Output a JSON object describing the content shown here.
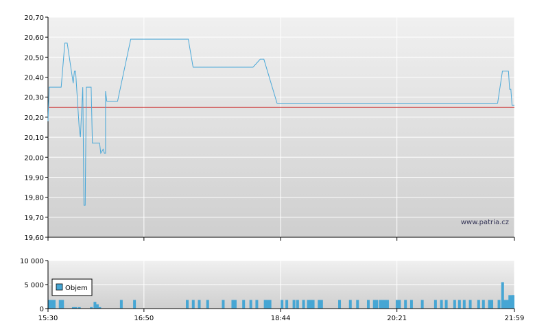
{
  "watermark": "www.patria.cz",
  "colors": {
    "price_line": "#4aa8d8",
    "reference_line": "#cc3333",
    "volume_bar": "#46a6d4",
    "grid": "#ffffff",
    "plot_top": "#f0f0f0",
    "plot_bottom": "#cfcfcf"
  },
  "chart_data": [
    {
      "type": "line",
      "name": "price",
      "ylim": [
        19.6,
        20.7
      ],
      "y_ticks": [
        "20,70",
        "20,60",
        "20,50",
        "20,40",
        "20,30",
        "20,20",
        "20,10",
        "20,00",
        "19,90",
        "19,80",
        "19,70",
        "19,60"
      ],
      "y_tick_values": [
        20.7,
        20.6,
        20.5,
        20.4,
        20.3,
        20.2,
        20.1,
        20.0,
        19.9,
        19.8,
        19.7,
        19.6
      ],
      "x_time_range": [
        "15:30",
        "21:59"
      ],
      "reference_value": 20.25,
      "points": [
        [
          "15:30",
          20.18
        ],
        [
          "15:31",
          20.35
        ],
        [
          "15:40",
          20.35
        ],
        [
          "15:41",
          20.35
        ],
        [
          "15:44",
          20.57
        ],
        [
          "15:46",
          20.57
        ],
        [
          "15:51",
          20.37
        ],
        [
          "15:52",
          20.43
        ],
        [
          "15:53",
          20.43
        ],
        [
          "15:56",
          20.15
        ],
        [
          "15:57",
          20.1
        ],
        [
          "15:59",
          20.35
        ],
        [
          "16:00",
          19.76
        ],
        [
          "16:01",
          19.76
        ],
        [
          "16:02",
          20.35
        ],
        [
          "16:06",
          20.35
        ],
        [
          "16:07",
          20.07
        ],
        [
          "16:13",
          20.07
        ],
        [
          "16:14",
          20.02
        ],
        [
          "16:16",
          20.04
        ],
        [
          "16:17",
          20.02
        ],
        [
          "16:18",
          20.02
        ],
        [
          "16:18",
          20.33
        ],
        [
          "16:19",
          20.28
        ],
        [
          "16:28",
          20.28
        ],
        [
          "16:39",
          20.59
        ],
        [
          "17:27",
          20.59
        ],
        [
          "17:31",
          20.45
        ],
        [
          "18:21",
          20.45
        ],
        [
          "18:27",
          20.49
        ],
        [
          "18:30",
          20.49
        ],
        [
          "18:41",
          20.27
        ],
        [
          "21:45",
          20.27
        ],
        [
          "21:49",
          20.43
        ],
        [
          "21:54",
          20.43
        ],
        [
          "21:55",
          20.34
        ],
        [
          "21:56",
          20.34
        ],
        [
          "21:57",
          20.26
        ],
        [
          "21:59",
          20.26
        ]
      ]
    },
    {
      "type": "bar",
      "name": "volume",
      "legend": "Objem",
      "ylim": [
        0,
        10000
      ],
      "y_ticks": [
        "10 000",
        "5 000",
        "0"
      ],
      "y_tick_values": [
        10000,
        5000,
        0
      ],
      "x_ticks": [
        "15:30",
        "16:50",
        "18:44",
        "20:21",
        "21:59"
      ],
      "bars": [
        [
          "15:30",
          1800
        ],
        [
          "15:32",
          1800
        ],
        [
          "15:34",
          1800
        ],
        [
          "15:39",
          1800
        ],
        [
          "15:41",
          1800
        ],
        [
          "15:50",
          300
        ],
        [
          "15:52",
          300
        ],
        [
          "15:55",
          300
        ],
        [
          "16:05",
          300
        ],
        [
          "16:08",
          1400
        ],
        [
          "16:10",
          900
        ],
        [
          "16:12",
          300
        ],
        [
          "16:30",
          1800
        ],
        [
          "16:41",
          1800
        ],
        [
          "17:25",
          1800
        ],
        [
          "17:30",
          1800
        ],
        [
          "17:35",
          1800
        ],
        [
          "17:42",
          1800
        ],
        [
          "17:55",
          1800
        ],
        [
          "18:03",
          1800
        ],
        [
          "18:05",
          1800
        ],
        [
          "18:12",
          1800
        ],
        [
          "18:18",
          1800
        ],
        [
          "18:23",
          1800
        ],
        [
          "18:30",
          1800
        ],
        [
          "18:32",
          1800
        ],
        [
          "18:34",
          1800
        ],
        [
          "18:44",
          1800
        ],
        [
          "18:48",
          1800
        ],
        [
          "18:54",
          1800
        ],
        [
          "18:57",
          1800
        ],
        [
          "19:02",
          1800
        ],
        [
          "19:06",
          1800
        ],
        [
          "19:08",
          1800
        ],
        [
          "19:10",
          1800
        ],
        [
          "19:15",
          1800
        ],
        [
          "19:17",
          1800
        ],
        [
          "19:32",
          1800
        ],
        [
          "19:41",
          1800
        ],
        [
          "19:47",
          1800
        ],
        [
          "19:56",
          1800
        ],
        [
          "20:01",
          1800
        ],
        [
          "20:03",
          1800
        ],
        [
          "20:06",
          1800
        ],
        [
          "20:08",
          1800
        ],
        [
          "20:10",
          1800
        ],
        [
          "20:12",
          1800
        ],
        [
          "20:20",
          1800
        ],
        [
          "20:22",
          1800
        ],
        [
          "20:27",
          1800
        ],
        [
          "20:32",
          1800
        ],
        [
          "20:41",
          1800
        ],
        [
          "20:52",
          1800
        ],
        [
          "20:57",
          1800
        ],
        [
          "21:01",
          1800
        ],
        [
          "21:08",
          1800
        ],
        [
          "21:12",
          1800
        ],
        [
          "21:16",
          1800
        ],
        [
          "21:21",
          1800
        ],
        [
          "21:28",
          1800
        ],
        [
          "21:32",
          1800
        ],
        [
          "21:37",
          1800
        ],
        [
          "21:39",
          1800
        ],
        [
          "21:45",
          1800
        ],
        [
          "21:48",
          5500
        ],
        [
          "21:50",
          1800
        ],
        [
          "21:52",
          1800
        ],
        [
          "21:54",
          2800
        ],
        [
          "21:56",
          2800
        ],
        [
          "21:58",
          2800
        ],
        [
          "21:59",
          2800
        ]
      ]
    }
  ]
}
